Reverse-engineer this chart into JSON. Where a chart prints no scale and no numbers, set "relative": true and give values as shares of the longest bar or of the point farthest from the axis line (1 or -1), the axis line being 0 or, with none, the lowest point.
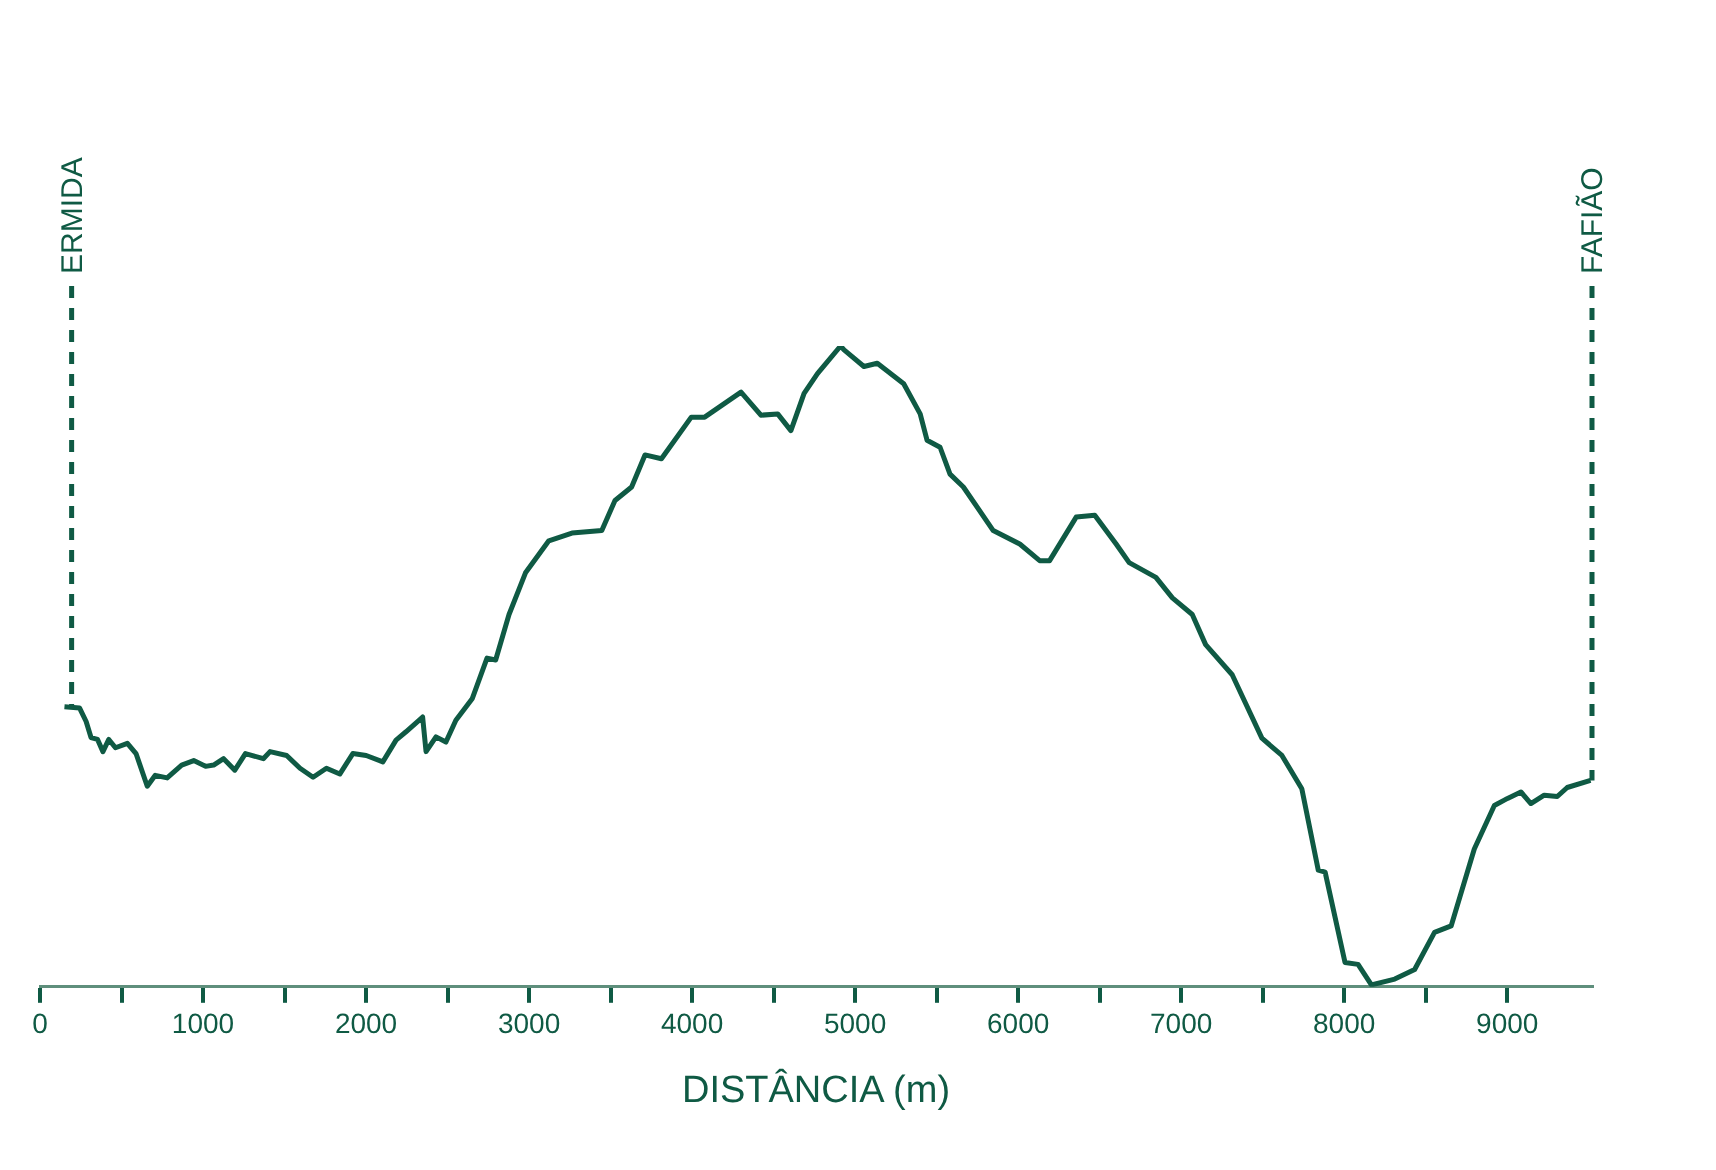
{
  "chart_data": {
    "type": "line",
    "xlabel": "DISTÂNCIA (m)",
    "relative": true,
    "color": "#0f5a44",
    "grid": false,
    "legend": false,
    "marker": "none",
    "line_style": "solid",
    "tick_labels": "x",
    "xlim": [
      0,
      9520
    ],
    "xticks": [
      0,
      {
        "value": 500,
        "label": null
      },
      1000,
      {
        "value": 1500,
        "label": null
      },
      2000,
      {
        "value": 2500,
        "label": null
      },
      3000,
      {
        "value": 3500,
        "label": null
      },
      4000,
      {
        "value": 4500,
        "label": null
      },
      5000,
      {
        "value": 5500,
        "label": null
      },
      6000,
      {
        "value": 6500,
        "label": null
      },
      7000,
      {
        "value": 7500,
        "label": null
      },
      8000,
      {
        "value": 8500,
        "label": null
      },
      9000
    ],
    "x": [
      150,
      243,
      283,
      313,
      353,
      386,
      422,
      463,
      536,
      589,
      658,
      707,
      780,
      869,
      943,
      1016,
      1065,
      1126,
      1195,
      1260,
      1370,
      1411,
      1513,
      1595,
      1675,
      1757,
      1839,
      1919,
      2001,
      2103,
      2184,
      2245,
      2347,
      2368,
      2429,
      2490,
      2551,
      2652,
      2742,
      2795,
      2877,
      2978,
      3121,
      3263,
      3446,
      3527,
      3629,
      3711,
      3812,
      3995,
      4077,
      4300,
      4422,
      4525,
      4606,
      4687,
      4769,
      4911,
      4932,
      5054,
      5136,
      5298,
      5399,
      5441,
      5521,
      5582,
      5664,
      5847,
      6010,
      6132,
      6193,
      6356,
      6470,
      6601,
      6681,
      6845,
      6946,
      7068,
      7150,
      7313,
      7495,
      7618,
      7740,
      7841,
      7883,
      8005,
      8085,
      8167,
      8310,
      8432,
      8554,
      8656,
      8798,
      8921,
      9002,
      9084,
      9145,
      9227,
      9307,
      9368,
      9511
    ],
    "values": [
      0.437,
      0.435,
      0.414,
      0.389,
      0.386,
      0.367,
      0.386,
      0.373,
      0.38,
      0.364,
      0.313,
      0.33,
      0.326,
      0.346,
      0.353,
      0.344,
      0.346,
      0.356,
      0.338,
      0.364,
      0.356,
      0.367,
      0.361,
      0.341,
      0.327,
      0.341,
      0.332,
      0.364,
      0.361,
      0.351,
      0.385,
      0.398,
      0.421,
      0.367,
      0.39,
      0.382,
      0.416,
      0.45,
      0.513,
      0.51,
      0.581,
      0.646,
      0.696,
      0.708,
      0.712,
      0.759,
      0.78,
      0.83,
      0.824,
      0.889,
      0.889,
      0.928,
      0.892,
      0.894,
      0.868,
      0.926,
      0.957,
      1,
      0.994,
      0.968,
      0.973,
      0.941,
      0.894,
      0.853,
      0.842,
      0.8,
      0.78,
      0.712,
      0.691,
      0.665,
      0.665,
      0.733,
      0.736,
      0.691,
      0.662,
      0.639,
      0.607,
      0.581,
      0.534,
      0.487,
      0.388,
      0.361,
      0.309,
      0.182,
      0.179,
      0.038,
      0.035,
      0.003,
      0.012,
      0.027,
      0.085,
      0.095,
      0.215,
      0.283,
      0.294,
      0.304,
      0.286,
      0.299,
      0.297,
      0.311,
      0.322
    ],
    "ref_lines": [
      {
        "axis": "x",
        "value": 194,
        "label": "ERMIDA",
        "line_style": "dashed"
      },
      {
        "axis": "x",
        "value": 9520,
        "label": "FAFIÃO",
        "line_style": "dashed"
      }
    ]
  }
}
